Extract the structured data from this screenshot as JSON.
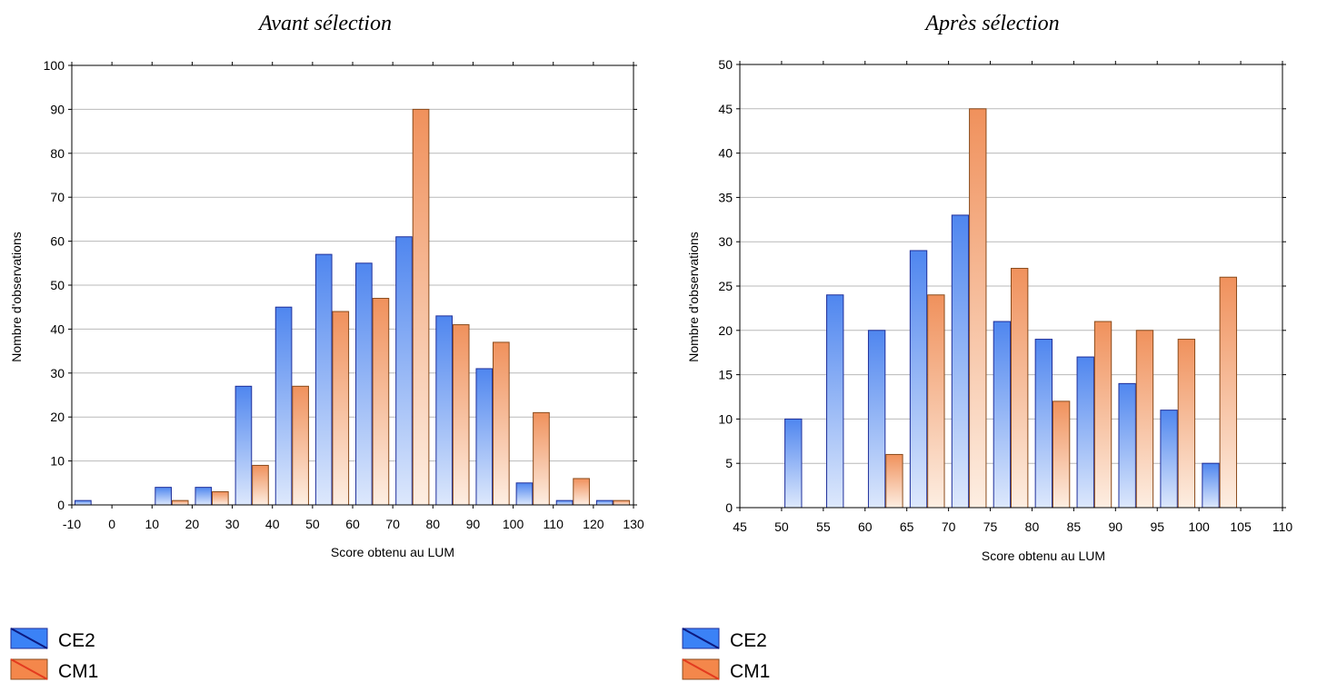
{
  "colors": {
    "ce2_top": "#4f86ef",
    "ce2_bottom": "#dde8fc",
    "ce2_edge": "#1f2f9a",
    "cm1_top": "#f0915c",
    "cm1_bottom": "#fdeee2",
    "cm1_edge": "#8a4b1c",
    "grid": "#b9b9b9"
  },
  "chart_data": [
    {
      "type": "bar",
      "title": "Avant sélection",
      "xlabel": "Score obtenu au LUM",
      "ylabel": "Nombre d'observations",
      "xlim": [
        -10,
        130
      ],
      "ylim": [
        0,
        100
      ],
      "xticks": [
        -10,
        0,
        10,
        20,
        30,
        40,
        50,
        60,
        70,
        80,
        90,
        100,
        110,
        120,
        130
      ],
      "xtick_labels": [
        "-10",
        "0",
        "10",
        "20",
        "30",
        "40",
        "50",
        "60",
        "70",
        "80",
        "90",
        "100",
        "110",
        "120",
        "130"
      ],
      "yticks": [
        0,
        10,
        20,
        30,
        40,
        50,
        60,
        70,
        80,
        90,
        100
      ],
      "ytick_labels": [
        "0",
        "10",
        "20",
        "30",
        "40",
        "50",
        "60",
        "70",
        "80",
        "90",
        "100"
      ],
      "bin_width": 10,
      "bins": [
        -10,
        0,
        10,
        20,
        30,
        40,
        50,
        60,
        70,
        80,
        90,
        100,
        110,
        120
      ],
      "grid": true,
      "series": [
        {
          "name": "CE2",
          "values": [
            1,
            0,
            4,
            4,
            27,
            45,
            57,
            55,
            61,
            43,
            31,
            5,
            1,
            1
          ]
        },
        {
          "name": "CM1",
          "values": [
            0,
            0,
            1,
            3,
            9,
            27,
            44,
            47,
            90,
            41,
            37,
            21,
            6,
            1
          ]
        }
      ]
    },
    {
      "type": "bar",
      "title": "Après sélection",
      "xlabel": "Score obtenu au LUM",
      "ylabel": "Nombre d'observations",
      "xlim": [
        45,
        110
      ],
      "ylim": [
        0,
        50
      ],
      "xticks": [
        45,
        50,
        55,
        60,
        65,
        70,
        75,
        80,
        85,
        90,
        95,
        100,
        105,
        110
      ],
      "xtick_labels": [
        "45",
        "50",
        "55",
        "60",
        "65",
        "70",
        "75",
        "80",
        "85",
        "90",
        "95",
        "100",
        "105",
        "110"
      ],
      "yticks": [
        0,
        5,
        10,
        15,
        20,
        25,
        30,
        35,
        40,
        45,
        50
      ],
      "ytick_labels": [
        "0",
        "5",
        "10",
        "15",
        "20",
        "25",
        "30",
        "35",
        "40",
        "45",
        "50"
      ],
      "bin_width": 5,
      "bins": [
        50,
        55,
        60,
        65,
        70,
        75,
        80,
        85,
        90,
        95,
        100
      ],
      "grid": true,
      "series": [
        {
          "name": "CE2",
          "values": [
            10,
            24,
            20,
            29,
            33,
            21,
            19,
            17,
            14,
            11,
            5
          ]
        },
        {
          "name": "CM1",
          "values": [
            0,
            0,
            6,
            24,
            45,
            27,
            12,
            21,
            20,
            19,
            26
          ]
        }
      ]
    }
  ]
}
